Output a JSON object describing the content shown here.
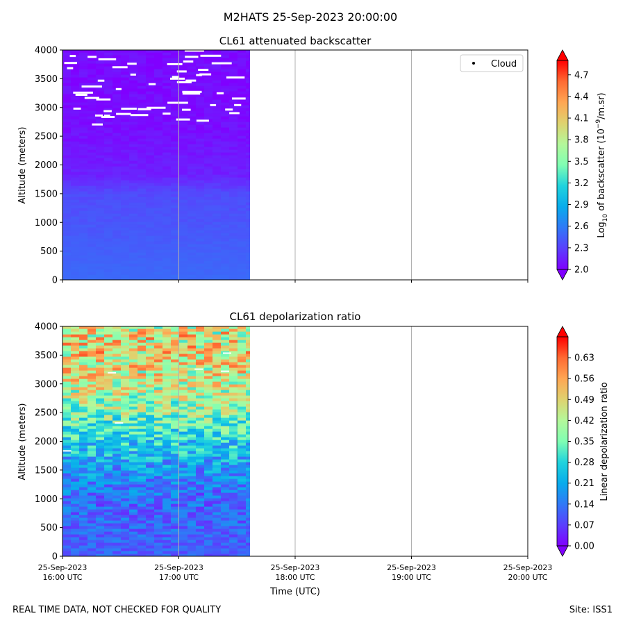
{
  "figure": {
    "suptitle": "M2HATS 25-Sep-2023 20:00:00",
    "footer_left": "REAL TIME DATA, NOT CHECKED FOR QUALITY",
    "footer_right": "Site: ISS1"
  },
  "chart_data": [
    {
      "type": "heatmap",
      "title": "CL61 attenuated backscatter",
      "ylabel": "Altitude (meters)",
      "xlabel": "",
      "ylim": [
        0,
        4000
      ],
      "yticks": [
        "0",
        "500",
        "1000",
        "1500",
        "2000",
        "2500",
        "3000",
        "3500",
        "4000"
      ],
      "x_range_hours_utc": [
        16.0,
        20.0
      ],
      "data_extent_hours_utc": [
        16.0,
        17.6
      ],
      "legend": {
        "entries": [
          "Cloud"
        ],
        "location": "top-right"
      },
      "colorbar": {
        "label_prefix": "Log",
        "label_sub": "10",
        "label_mid": " of backscatter (10",
        "label_sup": "−9",
        "label_suffix": "/m.sr)",
        "range": [
          2.0,
          4.9
        ],
        "ticks": [
          "2.0",
          "2.3",
          "2.6",
          "2.9",
          "3.2",
          "3.5",
          "3.8",
          "4.1",
          "4.4",
          "4.7"
        ],
        "colormap": "rainbow"
      },
      "profile_note": "Values near 2.5 at surface decreasing to ~2.05 above 1800 m; scattered cloud flags above 2700 m",
      "profile_altitude_m": [
        0,
        500,
        1000,
        1500,
        1800,
        2500,
        3000,
        4000
      ],
      "profile_value": [
        2.5,
        2.45,
        2.4,
        2.35,
        2.15,
        2.08,
        2.05,
        2.05
      ]
    },
    {
      "type": "heatmap",
      "title": "CL61 depolarization ratio",
      "ylabel": "Altitude (meters)",
      "xlabel": "Time (UTC)",
      "ylim": [
        0,
        4000
      ],
      "yticks": [
        "0",
        "500",
        "1000",
        "1500",
        "2000",
        "2500",
        "3000",
        "3500",
        "4000"
      ],
      "xticks": [
        {
          "line1": "25-Sep-2023",
          "line2": "16:00 UTC"
        },
        {
          "line1": "25-Sep-2023",
          "line2": "17:00 UTC"
        },
        {
          "line1": "25-Sep-2023",
          "line2": "18:00 UTC"
        },
        {
          "line1": "25-Sep-2023",
          "line2": "19:00 UTC"
        },
        {
          "line1": "25-Sep-2023",
          "line2": "20:00 UTC"
        }
      ],
      "x_range_hours_utc": [
        16.0,
        20.0
      ],
      "data_extent_hours_utc": [
        16.0,
        17.6
      ],
      "colorbar": {
        "label": "Linear depolarization ratio",
        "range": [
          0.0,
          0.7
        ],
        "ticks": [
          "0.00",
          "0.07",
          "0.14",
          "0.21",
          "0.28",
          "0.35",
          "0.42",
          "0.49",
          "0.56",
          "0.63"
        ],
        "colormap": "rainbow"
      },
      "profile_altitude_m": [
        0,
        1000,
        1500,
        2000,
        2500,
        3000,
        3500,
        4000
      ],
      "profile_value": [
        0.11,
        0.12,
        0.18,
        0.27,
        0.38,
        0.45,
        0.48,
        0.47
      ]
    }
  ]
}
